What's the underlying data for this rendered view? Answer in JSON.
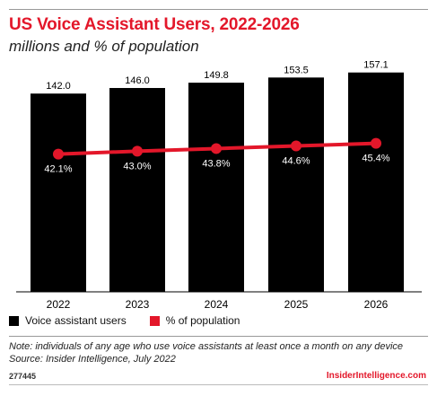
{
  "header": {
    "title": "US Voice Assistant Users, 2022-2026",
    "subtitle": "millions and % of population"
  },
  "legend": {
    "bars_label": "Voice assistant users",
    "line_label": "% of population"
  },
  "footer": {
    "note_line1": "Note: individuals of any age who use voice assistants at least once a month on any device",
    "note_line2": "Source: Insider Intelligence, July 2022",
    "chart_id": "277445",
    "brand": "InsiderIntelligence.com"
  },
  "colors": {
    "bar": "#000000",
    "line": "#e3172a",
    "title": "#e3172a"
  },
  "chart_data": {
    "type": "bar",
    "categories": [
      "2022",
      "2023",
      "2024",
      "2025",
      "2026"
    ],
    "series": [
      {
        "name": "Voice assistant users",
        "type": "bar",
        "values": [
          142.0,
          146.0,
          149.8,
          153.5,
          157.1
        ],
        "labels": [
          "142.0",
          "146.0",
          "149.8",
          "153.5",
          "157.1"
        ]
      },
      {
        "name": "% of population",
        "type": "line",
        "values": [
          42.1,
          43.0,
          43.8,
          44.6,
          45.4
        ],
        "labels": [
          "42.1%",
          "43.0%",
          "43.8%",
          "44.6%",
          "45.4%"
        ]
      }
    ],
    "title": "US Voice Assistant Users, 2022-2026",
    "subtitle": "millions and % of population",
    "ylim_bars": [
      0,
      164
    ],
    "ylim_line": [
      0,
      70
    ],
    "grid": false,
    "legend_position": "bottom-left"
  }
}
